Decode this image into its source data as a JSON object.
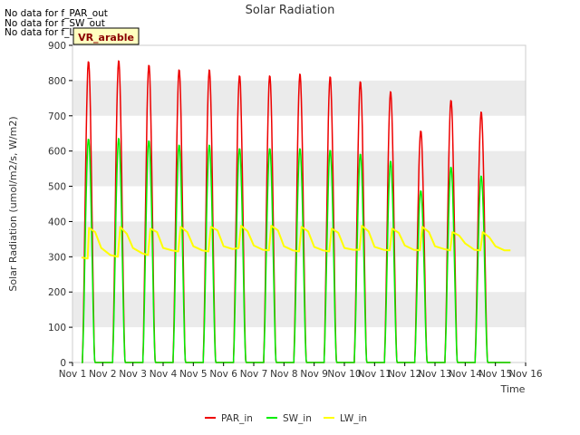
{
  "no_data_messages": [
    "No data for f_PAR_out",
    "No data for f_SW_out",
    "No data for f_LW_out"
  ],
  "site_badge": "VR_arable",
  "chart_data": {
    "type": "line",
    "title": "Solar Radiation",
    "xlabel": "Time",
    "ylabel": "Solar Radiation (umol/m2/s, W/m2)",
    "xlim": [
      1,
      16
    ],
    "ylim": [
      0,
      900
    ],
    "x_ticks": [
      1,
      2,
      3,
      4,
      5,
      6,
      7,
      8,
      9,
      10,
      11,
      12,
      13,
      14,
      15,
      16
    ],
    "x_tick_labels": [
      "Nov 1",
      "Nov 2",
      "Nov 3",
      "Nov 4",
      "Nov 5",
      "Nov 6",
      "Nov 7",
      "Nov 8",
      "Nov 9",
      "Nov 10",
      "Nov 11",
      "Nov 12",
      "Nov 13",
      "Nov 14",
      "Nov 15",
      "Nov 16"
    ],
    "y_ticks": [
      0,
      100,
      200,
      300,
      400,
      500,
      600,
      700,
      800,
      900
    ],
    "legend": [
      "PAR_in",
      "SW_in",
      "LW_in"
    ],
    "legend_position": "bottom-center",
    "colors": {
      "PAR_in": "#ee0000",
      "SW_in": "#00ee00",
      "LW_in": "#ffff00",
      "band": "#ebebeb"
    },
    "series": [
      {
        "name": "PAR_in",
        "type": "daily_peak",
        "peak_day_offset": 0.53,
        "daily_peaks": [
          855,
          858,
          845,
          832,
          832,
          815,
          815,
          820,
          812,
          798,
          770,
          658,
          745,
          712
        ]
      },
      {
        "name": "SW_in",
        "type": "daily_peak",
        "peak_day_offset": 0.53,
        "daily_peaks": [
          635,
          637,
          630,
          618,
          618,
          608,
          608,
          608,
          603,
          592,
          572,
          488,
          555,
          530
        ]
      },
      {
        "name": "LW_in",
        "type": "line",
        "x": [
          1.3,
          1.5,
          1.55,
          1.75,
          1.95,
          2.25,
          2.5,
          2.58,
          2.8,
          3.0,
          3.3,
          3.5,
          3.58,
          3.8,
          4.0,
          4.3,
          4.5,
          4.58,
          4.8,
          5.0,
          5.3,
          5.5,
          5.58,
          5.8,
          6.0,
          6.3,
          6.5,
          6.58,
          6.8,
          7.0,
          7.3,
          7.5,
          7.58,
          7.8,
          8.0,
          8.3,
          8.5,
          8.58,
          8.8,
          9.0,
          9.3,
          9.5,
          9.58,
          9.8,
          10.0,
          10.3,
          10.5,
          10.58,
          10.8,
          11.0,
          11.3,
          11.5,
          11.58,
          11.8,
          12.0,
          12.3,
          12.5,
          12.58,
          12.8,
          13.0,
          13.3,
          13.5,
          13.58,
          13.8,
          14.0,
          14.3,
          14.5,
          14.58,
          14.8,
          15.0,
          15.3,
          15.5
        ],
        "values": [
          298,
          295,
          382,
          370,
          325,
          305,
          300,
          385,
          365,
          325,
          310,
          305,
          380,
          370,
          325,
          318,
          315,
          385,
          370,
          330,
          318,
          315,
          385,
          375,
          330,
          322,
          325,
          388,
          372,
          332,
          320,
          318,
          388,
          375,
          330,
          318,
          315,
          385,
          372,
          328,
          318,
          315,
          380,
          368,
          325,
          320,
          320,
          388,
          372,
          328,
          320,
          318,
          380,
          368,
          332,
          320,
          318,
          385,
          370,
          330,
          322,
          318,
          370,
          360,
          338,
          320,
          318,
          370,
          355,
          330,
          318,
          318
        ]
      }
    ]
  }
}
